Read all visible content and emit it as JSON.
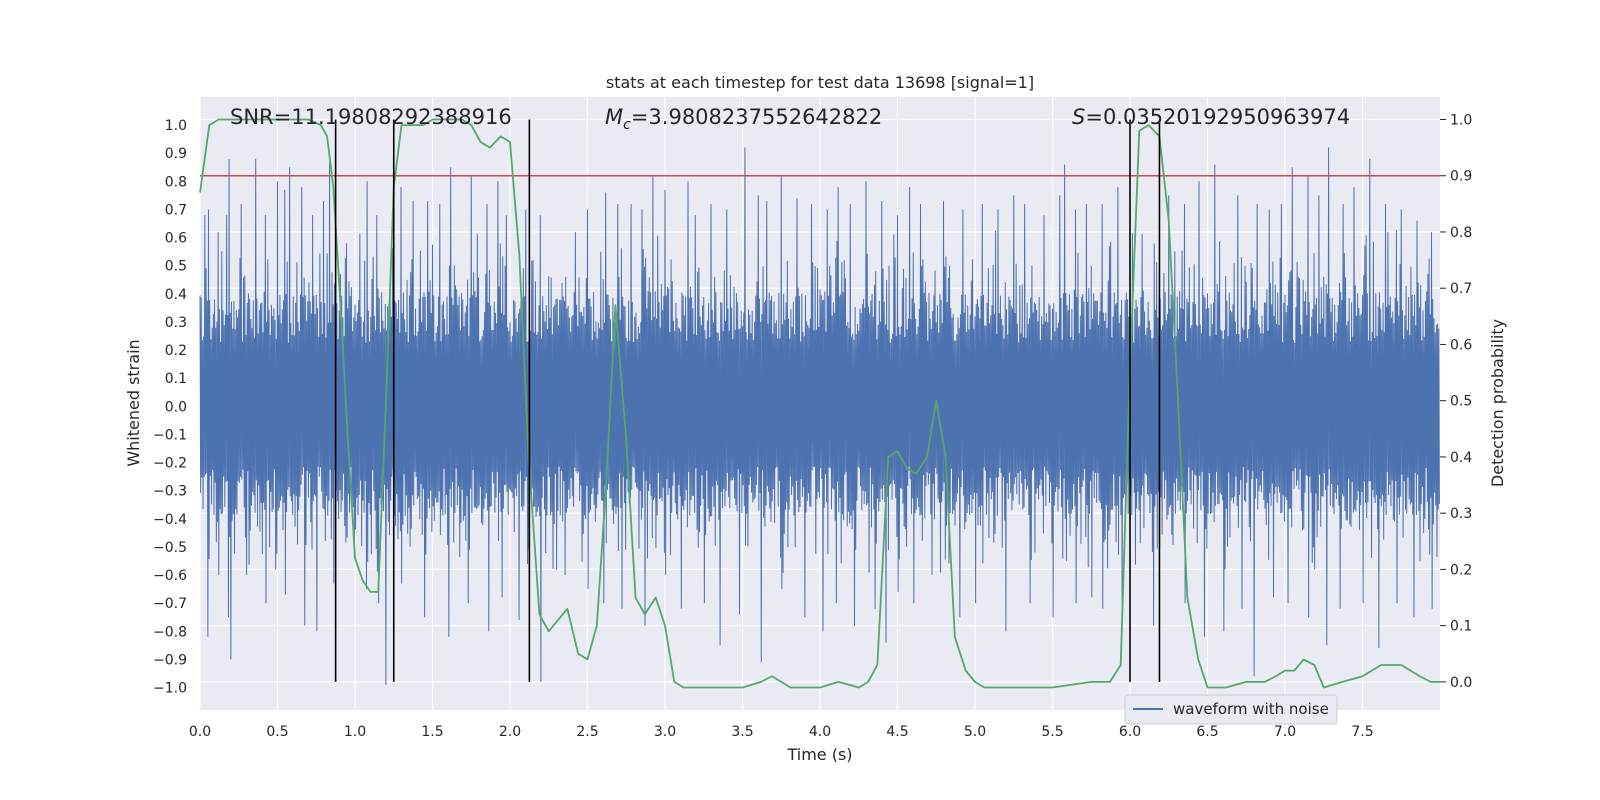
{
  "chart_data": {
    "type": "line",
    "title": "stats at each timestep for test data 13698 [signal=1]",
    "xlabel": "Time (s)",
    "ylabel_left": "Whitened strain",
    "ylabel_right": "Detection probability",
    "xlim": [
      0,
      8
    ],
    "ylim_left": [
      -1.08,
      1.1
    ],
    "ylim_right": [
      -0.05,
      1.04
    ],
    "grid": true,
    "x_ticks": [
      0.0,
      0.5,
      1.0,
      1.5,
      2.0,
      2.5,
      3.0,
      3.5,
      4.0,
      4.5,
      5.0,
      5.5,
      6.0,
      6.5,
      7.0,
      7.5
    ],
    "x_tick_labels": [
      "0.0",
      "0.5",
      "1.0",
      "1.5",
      "2.0",
      "2.5",
      "3.0",
      "3.5",
      "4.0",
      "4.5",
      "5.0",
      "5.5",
      "6.0",
      "6.5",
      "7.0",
      "7.5"
    ],
    "y_left_ticks": [
      1.0,
      0.9,
      0.8,
      0.7,
      0.6,
      0.5,
      0.4,
      0.3,
      0.2,
      0.1,
      0.0,
      -0.1,
      -0.2,
      -0.3,
      -0.4,
      -0.5,
      -0.6,
      -0.7,
      -0.8,
      -0.9,
      -1.0
    ],
    "y_left_tick_labels": [
      "1.0",
      "0.9",
      "0.8",
      "0.7",
      "0.6",
      "0.5",
      "0.4",
      "0.3",
      "0.2",
      "0.1",
      "0.0",
      "−0.1",
      "−0.2",
      "−0.3",
      "−0.4",
      "−0.5",
      "−0.6",
      "−0.7",
      "−0.8",
      "−0.9",
      "−1.0"
    ],
    "y_right_ticks": [
      1.0,
      0.9,
      0.8,
      0.7,
      0.6,
      0.5,
      0.4,
      0.3,
      0.2,
      0.1,
      0.0
    ],
    "y_right_tick_labels": [
      "1.0",
      "0.9",
      "0.8",
      "0.7",
      "0.6",
      "0.5",
      "0.4",
      "0.3",
      "0.2",
      "0.1",
      "0.0"
    ],
    "annotations": {
      "snr": "SNR=11.19808292388916",
      "mc_symbol": "M",
      "mc_sub": "c",
      "mc_value": "=3.9808237552642822",
      "s_symbol": "S",
      "s_value": "=0.03520192950963974"
    },
    "legend": {
      "label": "waveform with noise",
      "placement": "lower-right"
    },
    "threshold": {
      "value": 0.9,
      "axis": "right",
      "color": "#c44e52"
    },
    "vertical_lines": [
      0.875,
      1.25,
      2.125,
      6.0,
      6.19
    ],
    "waveform": {
      "name": "waveform with noise",
      "color": "#4c72b0",
      "n_samples": 2048,
      "band": [
        -0.39,
        0.41
      ],
      "positive_peaks": [
        [
          0.03,
          0.68
        ],
        [
          0.06,
          0.7
        ],
        [
          0.12,
          0.62
        ],
        [
          0.17,
          0.68
        ],
        [
          0.19,
          0.88
        ],
        [
          0.27,
          0.72
        ],
        [
          0.36,
          0.88
        ],
        [
          0.42,
          0.68
        ],
        [
          0.5,
          0.8
        ],
        [
          0.55,
          0.77
        ],
        [
          0.58,
          0.85
        ],
        [
          0.66,
          0.78
        ],
        [
          0.73,
          0.68
        ],
        [
          0.8,
          0.73
        ],
        [
          0.84,
          0.87
        ],
        [
          0.95,
          0.58
        ],
        [
          1.08,
          0.8
        ],
        [
          1.14,
          0.68
        ],
        [
          1.3,
          0.78
        ],
        [
          1.38,
          0.73
        ],
        [
          1.47,
          0.73
        ],
        [
          1.55,
          0.72
        ],
        [
          1.62,
          0.85
        ],
        [
          1.75,
          0.82
        ],
        [
          1.85,
          0.72
        ],
        [
          1.92,
          0.8
        ],
        [
          1.98,
          0.68
        ],
        [
          2.1,
          0.7
        ],
        [
          2.2,
          0.68
        ],
        [
          2.42,
          0.62
        ],
        [
          2.5,
          0.7
        ],
        [
          2.62,
          0.76
        ],
        [
          2.7,
          0.72
        ],
        [
          2.78,
          0.72
        ],
        [
          2.85,
          0.7
        ],
        [
          2.92,
          0.82
        ],
        [
          3.0,
          0.77
        ],
        [
          3.15,
          0.8
        ],
        [
          3.2,
          0.68
        ],
        [
          3.3,
          0.72
        ],
        [
          3.4,
          0.7
        ],
        [
          3.52,
          0.92
        ],
        [
          3.6,
          0.75
        ],
        [
          3.66,
          0.73
        ],
        [
          3.75,
          0.82
        ],
        [
          3.85,
          0.74
        ],
        [
          3.95,
          0.72
        ],
        [
          4.05,
          0.7
        ],
        [
          4.12,
          0.78
        ],
        [
          4.2,
          0.72
        ],
        [
          4.3,
          0.8
        ],
        [
          4.4,
          0.73
        ],
        [
          4.5,
          0.68
        ],
        [
          4.58,
          0.78
        ],
        [
          4.65,
          0.72
        ],
        [
          4.8,
          0.73
        ],
        [
          4.92,
          0.7
        ],
        [
          5.05,
          0.72
        ],
        [
          5.15,
          0.7
        ],
        [
          5.25,
          0.75
        ],
        [
          5.32,
          0.72
        ],
        [
          5.45,
          0.68
        ],
        [
          5.55,
          0.75
        ],
        [
          5.58,
          0.86
        ],
        [
          5.65,
          0.7
        ],
        [
          5.72,
          0.72
        ],
        [
          5.82,
          0.72
        ],
        [
          5.92,
          0.78
        ],
        [
          6.25,
          0.75
        ],
        [
          6.35,
          0.72
        ],
        [
          6.45,
          0.8
        ],
        [
          6.55,
          0.86
        ],
        [
          6.7,
          0.75
        ],
        [
          6.82,
          0.72
        ],
        [
          6.9,
          0.7
        ],
        [
          6.98,
          0.72
        ],
        [
          7.05,
          0.85
        ],
        [
          7.15,
          0.82
        ],
        [
          7.22,
          0.75
        ],
        [
          7.28,
          0.92
        ],
        [
          7.38,
          0.72
        ],
        [
          7.45,
          0.78
        ],
        [
          7.55,
          0.88
        ],
        [
          7.65,
          0.72
        ],
        [
          7.75,
          0.7
        ],
        [
          7.85,
          0.66
        ],
        [
          7.95,
          0.62
        ]
      ],
      "negative_peaks": [
        [
          0.05,
          -0.82
        ],
        [
          0.12,
          -0.6
        ],
        [
          0.18,
          -0.75
        ],
        [
          0.2,
          -0.9
        ],
        [
          0.3,
          -0.6
        ],
        [
          0.42,
          -0.7
        ],
        [
          0.55,
          -0.67
        ],
        [
          0.67,
          -0.78
        ],
        [
          0.75,
          -0.8
        ],
        [
          0.86,
          -0.63
        ],
        [
          1.07,
          -0.65
        ],
        [
          1.15,
          -0.7
        ],
        [
          1.2,
          -0.99
        ],
        [
          1.3,
          -0.63
        ],
        [
          1.45,
          -0.75
        ],
        [
          1.6,
          -0.82
        ],
        [
          1.73,
          -0.7
        ],
        [
          1.86,
          -0.8
        ],
        [
          1.95,
          -0.68
        ],
        [
          2.06,
          -0.76
        ],
        [
          2.2,
          -0.98
        ],
        [
          2.35,
          -0.6
        ],
        [
          2.5,
          -0.65
        ],
        [
          2.6,
          -0.7
        ],
        [
          2.72,
          -0.72
        ],
        [
          2.87,
          -0.78
        ],
        [
          3.0,
          -0.6
        ],
        [
          3.1,
          -0.72
        ],
        [
          3.25,
          -0.7
        ],
        [
          3.35,
          -0.85
        ],
        [
          3.48,
          -0.74
        ],
        [
          3.62,
          -0.91
        ],
        [
          3.75,
          -0.65
        ],
        [
          3.9,
          -0.75
        ],
        [
          4.02,
          -0.8
        ],
        [
          4.1,
          -0.7
        ],
        [
          4.22,
          -0.78
        ],
        [
          4.35,
          -0.72
        ],
        [
          4.42,
          -0.84
        ],
        [
          4.5,
          -0.66
        ],
        [
          4.6,
          -0.7
        ],
        [
          4.72,
          -0.6
        ],
        [
          4.9,
          -0.75
        ],
        [
          5.0,
          -0.7
        ],
        [
          5.2,
          -0.8
        ],
        [
          5.35,
          -0.7
        ],
        [
          5.5,
          -0.75
        ],
        [
          5.65,
          -0.7
        ],
        [
          5.75,
          -0.68
        ],
        [
          5.82,
          -0.72
        ],
        [
          5.95,
          -0.74
        ],
        [
          6.15,
          -0.78
        ],
        [
          6.35,
          -0.7
        ],
        [
          6.48,
          -0.82
        ],
        [
          6.6,
          -0.8
        ],
        [
          6.72,
          -0.72
        ],
        [
          6.8,
          -0.96
        ],
        [
          6.92,
          -0.68
        ],
        [
          7.02,
          -0.7
        ],
        [
          7.15,
          -0.75
        ],
        [
          7.27,
          -0.85
        ],
        [
          7.35,
          -0.72
        ],
        [
          7.5,
          -0.7
        ],
        [
          7.6,
          -0.86
        ],
        [
          7.72,
          -0.7
        ],
        [
          7.83,
          -0.75
        ],
        [
          7.95,
          -0.72
        ]
      ]
    },
    "detection_probability": {
      "color": "#55a868",
      "x": [
        0.0,
        0.06,
        0.12,
        0.25,
        0.5,
        0.7,
        0.78,
        0.82,
        0.86,
        0.9,
        0.95,
        1.0,
        1.05,
        1.1,
        1.15,
        1.2,
        1.25,
        1.3,
        1.37,
        1.44,
        1.5,
        1.56,
        1.62,
        1.69,
        1.75,
        1.81,
        1.87,
        1.94,
        2.0,
        2.06,
        2.12,
        2.19,
        2.25,
        2.31,
        2.37,
        2.44,
        2.5,
        2.56,
        2.62,
        2.68,
        2.75,
        2.81,
        2.87,
        2.94,
        3.0,
        3.06,
        3.12,
        3.19,
        3.5,
        3.62,
        3.69,
        3.81,
        4.0,
        4.12,
        4.25,
        4.31,
        4.37,
        4.44,
        4.5,
        4.56,
        4.62,
        4.69,
        4.75,
        4.81,
        4.87,
        4.94,
        5.0,
        5.06,
        5.12,
        5.25,
        5.5,
        5.75,
        5.87,
        5.94,
        6.0,
        6.06,
        6.12,
        6.19,
        6.25,
        6.31,
        6.37,
        6.44,
        6.5,
        6.56,
        6.62,
        6.75,
        6.87,
        6.94,
        7.0,
        7.06,
        7.12,
        7.19,
        7.25,
        7.37,
        7.5,
        7.56,
        7.62,
        7.69,
        7.75,
        7.81,
        7.87,
        7.94,
        8.0
      ],
      "values": [
        0.87,
        0.99,
        1.0,
        1.0,
        1.0,
        1.0,
        0.99,
        0.97,
        0.88,
        0.7,
        0.45,
        0.22,
        0.18,
        0.16,
        0.16,
        0.5,
        0.88,
        0.99,
        0.99,
        0.99,
        1.0,
        1.0,
        1.0,
        1.0,
        0.99,
        0.96,
        0.95,
        0.97,
        0.96,
        0.76,
        0.4,
        0.12,
        0.09,
        0.11,
        0.13,
        0.05,
        0.04,
        0.1,
        0.35,
        0.67,
        0.43,
        0.15,
        0.12,
        0.15,
        0.1,
        0.0,
        -0.01,
        -0.01,
        -0.01,
        0.0,
        0.01,
        -0.01,
        -0.01,
        0.0,
        -0.01,
        0.0,
        0.03,
        0.4,
        0.41,
        0.38,
        0.37,
        0.4,
        0.5,
        0.4,
        0.08,
        0.02,
        0.0,
        -0.01,
        -0.01,
        -0.01,
        -0.01,
        0.0,
        0.0,
        0.03,
        0.56,
        0.98,
        0.99,
        0.97,
        0.82,
        0.5,
        0.15,
        0.04,
        -0.01,
        -0.01,
        -0.01,
        0.0,
        0.0,
        0.01,
        0.02,
        0.02,
        0.04,
        0.03,
        -0.01,
        0.0,
        0.01,
        0.02,
        0.03,
        0.03,
        0.03,
        0.02,
        0.01,
        0.0,
        0.0
      ]
    }
  }
}
